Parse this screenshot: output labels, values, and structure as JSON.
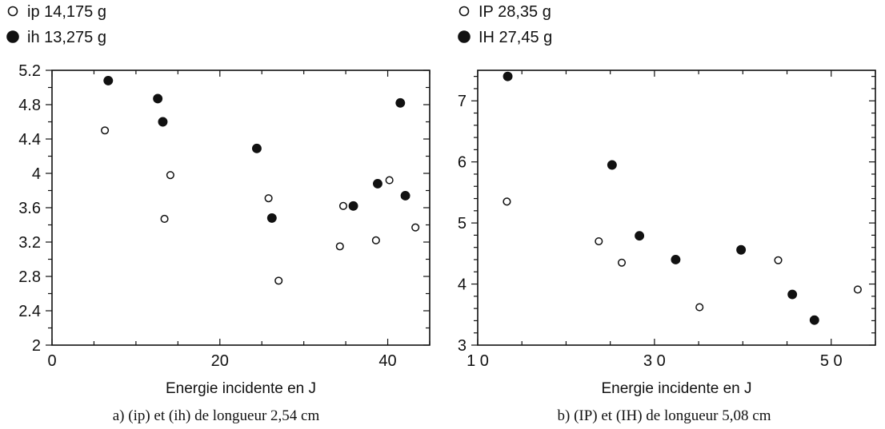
{
  "chart_data": [
    {
      "type": "scatter",
      "caption": "a) (ip) et (ih) de longueur 2,54 cm",
      "xlabel": "Energie incidente en J",
      "ylabel": "",
      "xlim": [
        0,
        45
      ],
      "ylim": [
        2,
        5.2
      ],
      "xticks": [
        0,
        20,
        40
      ],
      "xtick_labels": [
        "0",
        "20",
        "40"
      ],
      "yticks": [
        2,
        2.4,
        2.8,
        3.2,
        3.6,
        4,
        4.4,
        4.8,
        5.2
      ],
      "ytick_labels": [
        "2",
        "2.4",
        "2.8",
        "3.2",
        "3.6",
        "4",
        "4.4",
        "4.8",
        "5.2"
      ],
      "legend_position": "top-left, above plot",
      "series": [
        {
          "name": "ip  14,175  g",
          "marker": "open-circle",
          "x": [
            6.3,
            13.4,
            14.1,
            25.8,
            27.0,
            34.3,
            34.7,
            38.6,
            40.2,
            43.3
          ],
          "y": [
            4.5,
            3.47,
            3.98,
            3.71,
            2.75,
            3.15,
            3.62,
            3.22,
            3.92,
            3.37
          ]
        },
        {
          "name": "ih  13,275  g",
          "marker": "filled-circle",
          "x": [
            6.7,
            12.6,
            13.2,
            24.4,
            26.2,
            35.9,
            38.8,
            41.5,
            42.1
          ],
          "y": [
            5.08,
            4.87,
            4.6,
            4.29,
            3.48,
            3.62,
            3.88,
            4.82,
            3.74
          ]
        }
      ]
    },
    {
      "type": "scatter",
      "caption": "b) (IP) et (IH) de longueur 5,08 cm",
      "xlabel": "Energie incidente en J",
      "ylabel": "",
      "xlim": [
        10,
        55
      ],
      "ylim": [
        3,
        7.5
      ],
      "xticks": [
        10,
        30,
        50
      ],
      "xtick_labels": [
        "1 0",
        "3 0",
        "5 0"
      ],
      "yticks": [
        3,
        4,
        5,
        6,
        7
      ],
      "ytick_labels": [
        "3",
        "4",
        "5",
        "6",
        "7"
      ],
      "legend_position": "top-left, above plot",
      "series": [
        {
          "name": "IP  28,35  g",
          "marker": "open-circle",
          "x": [
            13.3,
            23.7,
            26.3,
            35.1,
            44.0,
            53.0
          ],
          "y": [
            5.35,
            4.7,
            4.35,
            3.62,
            4.39,
            3.91
          ]
        },
        {
          "name": "IH  27,45  g",
          "marker": "filled-circle",
          "x": [
            13.4,
            25.2,
            28.3,
            32.4,
            39.8,
            45.6,
            48.1
          ],
          "y": [
            7.4,
            5.95,
            4.79,
            4.4,
            4.56,
            3.83,
            3.41
          ]
        }
      ]
    }
  ],
  "colors": {
    "ink": "#111111",
    "background": "#ffffff"
  }
}
